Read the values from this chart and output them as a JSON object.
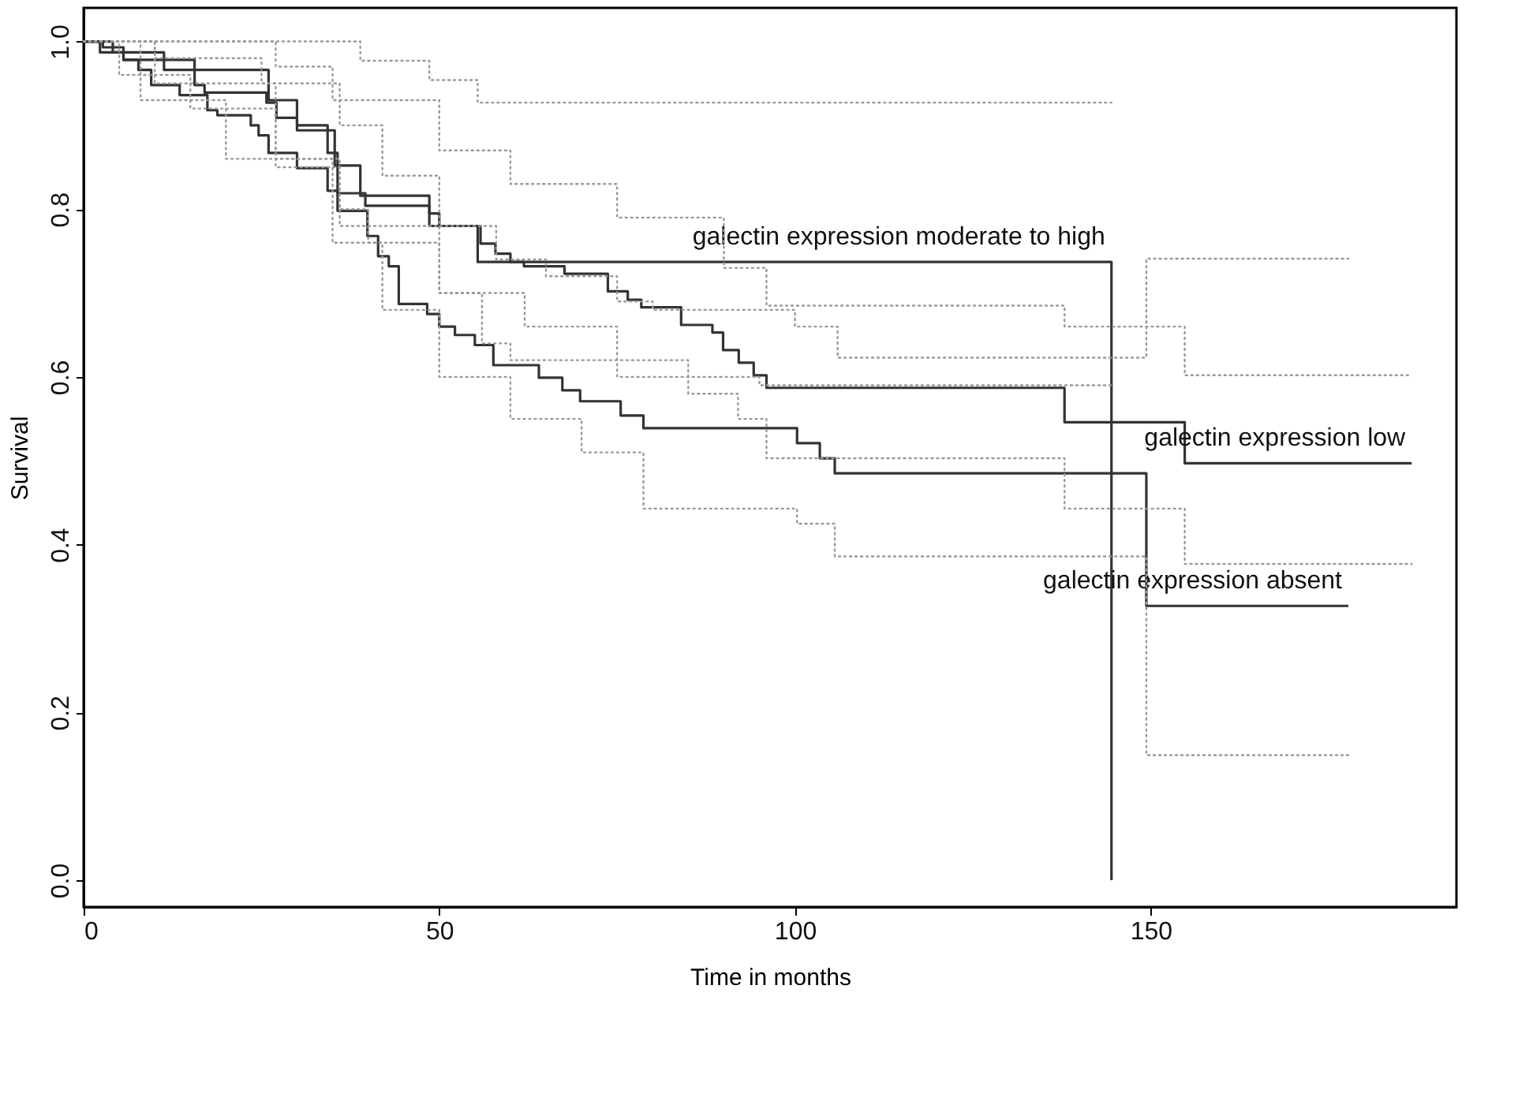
{
  "chart_data": {
    "type": "step",
    "xlabel": "Time in months",
    "ylabel": "Survival",
    "xlim": [
      0,
      193
    ],
    "ylim": [
      -0.032,
      1.04
    ],
    "xticks": [
      0,
      50,
      100,
      150
    ],
    "yticks": [
      {
        "value": 0,
        "label": "0.0"
      },
      {
        "value": 0.2,
        "label": "0.2"
      },
      {
        "value": 0.4,
        "label": "0.4"
      },
      {
        "value": 0.6,
        "label": "0.6"
      },
      {
        "value": 0.8,
        "label": "0.8"
      },
      {
        "value": 1,
        "label": "1.0"
      }
    ],
    "grid": false,
    "line_style": "solid",
    "series": [
      {
        "name": "galectin expression moderate to high",
        "color": "#333333",
        "x": [
          0,
          4.1,
          11.3,
          26,
          30,
          35.3,
          38.9,
          48.6,
          55.4,
          144.5
        ],
        "values": [
          1.0,
          0.987,
          0.966,
          0.93,
          0.894,
          0.852,
          0.816,
          0.78,
          0.737,
          0
        ]
      },
      {
        "name": "galectin expression low",
        "color": "#333333",
        "x": [
          0,
          2.7,
          5.6,
          15.6,
          17,
          25.7,
          27.1,
          30,
          34.3,
          35.7,
          39.6,
          48.6,
          50,
          55.8,
          57.9,
          60,
          61.9,
          67.6,
          73.7,
          76.5,
          78.4,
          84,
          88.4,
          89.9,
          92.1,
          94.2,
          96,
          137.9,
          154.8,
          186.7
        ],
        "values": [
          1.0,
          0.993,
          0.978,
          0.948,
          0.939,
          0.927,
          0.909,
          0.9,
          0.867,
          0.819,
          0.804,
          0.795,
          0.78,
          0.759,
          0.747,
          0.737,
          0.732,
          0.723,
          0.702,
          0.692,
          0.683,
          0.662,
          0.653,
          0.632,
          0.617,
          0.602,
          0.587,
          0.546,
          0.497,
          0.497
        ]
      },
      {
        "name": "galectin expression absent",
        "color": "#333333",
        "x": [
          0,
          2.3,
          5.6,
          7.7,
          9.5,
          13.5,
          17.4,
          18.8,
          23.5,
          24.6,
          26,
          30,
          34.3,
          35.7,
          39.9,
          41.4,
          42.9,
          44.3,
          48.3,
          50,
          52.2,
          55,
          57.6,
          64,
          67.3,
          69.8,
          75.5,
          78.7,
          100.3,
          103.5,
          105.6,
          149.4,
          177.8
        ],
        "values": [
          1.0,
          0.987,
          0.978,
          0.966,
          0.948,
          0.936,
          0.918,
          0.912,
          0.9,
          0.888,
          0.867,
          0.849,
          0.822,
          0.798,
          0.768,
          0.744,
          0.732,
          0.687,
          0.675,
          0.66,
          0.65,
          0.638,
          0.614,
          0.599,
          0.584,
          0.571,
          0.554,
          0.539,
          0.521,
          0.503,
          0.485,
          0.327,
          0.327
        ]
      },
      {
        "color": "#999999",
        "line_style": "dotted",
        "x": [
          0,
          38.9,
          48.6,
          55.4,
          144.5
        ],
        "values": [
          1.0,
          0.977,
          0.954,
          0.927,
          0.927
        ]
      },
      {
        "color": "#999999",
        "line_style": "dotted",
        "x": [
          0,
          5,
          15,
          27,
          36,
          40,
          50,
          56,
          60,
          75,
          95,
          144.5
        ],
        "values": [
          1.0,
          0.96,
          0.92,
          0.86,
          0.8,
          0.76,
          0.7,
          0.64,
          0.62,
          0.6,
          0.59,
          0.59
        ]
      },
      {
        "color": "#999999",
        "line_style": "dotted",
        "x": [
          0,
          27,
          35,
          50,
          60,
          75,
          90,
          96,
          137.9,
          154.8,
          186.7
        ],
        "values": [
          1.0,
          0.97,
          0.93,
          0.87,
          0.83,
          0.79,
          0.73,
          0.685,
          0.66,
          0.602,
          0.602
        ]
      },
      {
        "color": "#999999",
        "line_style": "dotted",
        "x": [
          0,
          10,
          27,
          36,
          50,
          62,
          75,
          85,
          92,
          96,
          137.9,
          154.8,
          186.7
        ],
        "values": [
          1.0,
          0.95,
          0.85,
          0.78,
          0.7,
          0.66,
          0.62,
          0.58,
          0.55,
          0.503,
          0.443,
          0.377,
          0.377
        ]
      },
      {
        "color": "#999999",
        "line_style": "dotted",
        "x": [
          0,
          10,
          25,
          36,
          42,
          50,
          58,
          65,
          75,
          80,
          100,
          106,
          149.4,
          177.8
        ],
        "values": [
          1.0,
          0.98,
          0.95,
          0.9,
          0.84,
          0.78,
          0.74,
          0.72,
          0.69,
          0.68,
          0.66,
          0.623,
          0.741,
          0.741
        ]
      },
      {
        "color": "#999999",
        "line_style": "dotted",
        "x": [
          0,
          8,
          20,
          35,
          42,
          50,
          60,
          70,
          78.7,
          100.3,
          105.6,
          149.4,
          177.8
        ],
        "values": [
          1.0,
          0.93,
          0.86,
          0.76,
          0.68,
          0.6,
          0.55,
          0.51,
          0.443,
          0.425,
          0.386,
          0.149,
          0.149
        ]
      }
    ]
  }
}
